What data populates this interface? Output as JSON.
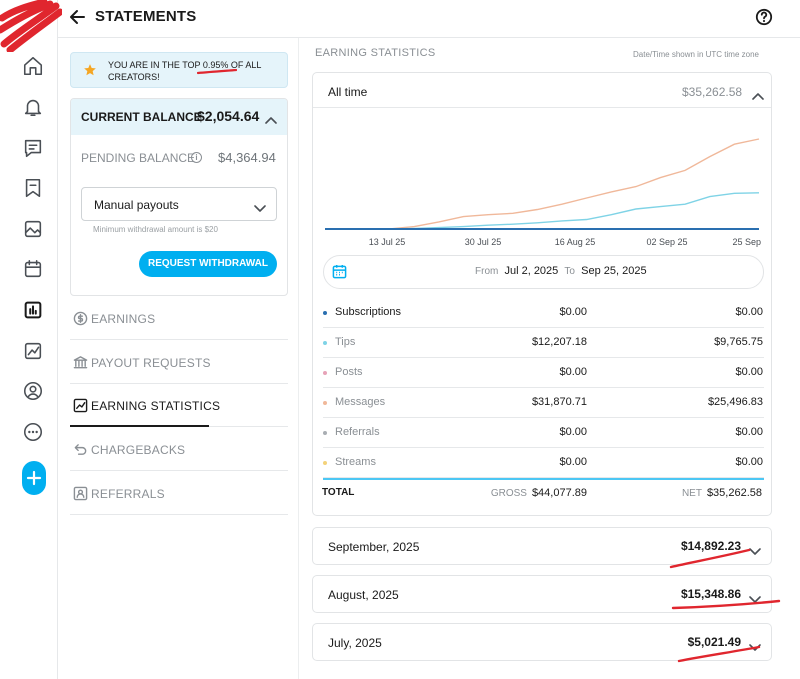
{
  "header": {
    "title": "STATEMENTS"
  },
  "rank": {
    "text": "YOU ARE IN THE TOP 0.95% OF ALL CREATORS!"
  },
  "balance": {
    "current_label": "CURRENT BALANCE",
    "current_value": "$2,054.64",
    "pending_label": "PENDING BALANCE",
    "pending_value": "$4,364.94",
    "payout_option": "Manual payouts",
    "min_note": "Minimum withdrawal amount is $20",
    "withdraw_label": "REQUEST WITHDRAWAL"
  },
  "menu": [
    {
      "label": "EARNINGS",
      "icon": "dollar-circle-icon"
    },
    {
      "label": "PAYOUT REQUESTS",
      "icon": "bank-icon"
    },
    {
      "label": "EARNING STATISTICS",
      "icon": "trend-chart-icon"
    },
    {
      "label": "CHARGEBACKS",
      "icon": "undo-icon"
    },
    {
      "label": "REFERRALS",
      "icon": "referral-icon"
    }
  ],
  "stats": {
    "section_title": "EARNING STATISTICS",
    "tz_note": "Date/Time shown in UTC time zone",
    "period_label": "All time",
    "period_total": "$35,262.58",
    "from_label": "From",
    "from_date": "Jul 2, 2025",
    "to_label": "To",
    "to_date": "Sep 25, 2025",
    "rows": [
      {
        "name": "Subscriptions",
        "gross": "$0.00",
        "net": "$0.00",
        "color": "#2a6fb0"
      },
      {
        "name": "Tips",
        "gross": "$12,207.18",
        "net": "$9,765.75",
        "color": "#7fd3e6"
      },
      {
        "name": "Posts",
        "gross": "$0.00",
        "net": "$0.00",
        "color": "#e7a3b8"
      },
      {
        "name": "Messages",
        "gross": "$31,870.71",
        "net": "$25,496.83",
        "color": "#f0b89a"
      },
      {
        "name": "Referrals",
        "gross": "$0.00",
        "net": "$0.00",
        "color": "#a9aeb3"
      },
      {
        "name": "Streams",
        "gross": "$0.00",
        "net": "$0.00",
        "color": "#f3d27a"
      }
    ],
    "total_label": "TOTAL",
    "gross_label": "GROSS",
    "gross_total": "$44,077.89",
    "net_label": "NET",
    "net_total": "$35,262.58"
  },
  "chart_data": {
    "type": "line",
    "x_ticks": [
      "13 Jul 25",
      "30 Jul 25",
      "16 Aug 25",
      "02 Sep 25",
      "25 Sep 25"
    ],
    "series": [
      {
        "color": "#f0b89a",
        "values": [
          0,
          0,
          0.5,
          1.5,
          2.6,
          3.0,
          3.3,
          4.1,
          5.2,
          6.5,
          7.8,
          8.9,
          10.8,
          12.3,
          15.2,
          17.8,
          18.9
        ]
      },
      {
        "color": "#7fd3e6",
        "values": [
          0,
          0,
          0.1,
          0.3,
          0.5,
          0.8,
          1.0,
          1.3,
          1.7,
          2.0,
          3.0,
          4.2,
          4.7,
          5.2,
          6.8,
          7.5,
          7.6
        ]
      },
      {
        "color": "#2a6fb0",
        "values": [
          0,
          0,
          0,
          0,
          0,
          0,
          0,
          0,
          0,
          0,
          0,
          0,
          0,
          0,
          0,
          0,
          0
        ]
      }
    ],
    "ylim": [
      0,
      21
    ],
    "grid": false,
    "legend": "none"
  },
  "months": [
    {
      "name": "September, 2025",
      "value": "$14,892.23"
    },
    {
      "name": "August, 2025",
      "value": "$15,348.86"
    },
    {
      "name": "July, 2025",
      "value": "$5,021.49"
    }
  ]
}
